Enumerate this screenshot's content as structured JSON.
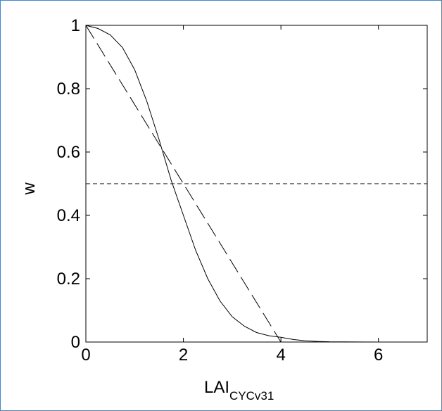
{
  "chart_data": {
    "type": "line",
    "xlabel": "LAI",
    "xlabel_subscript": "CYCv31",
    "ylabel": "w",
    "xlim": [
      0,
      7
    ],
    "ylim": [
      0,
      1
    ],
    "xticks": [
      0,
      2,
      4,
      6
    ],
    "yticks": [
      0,
      0.2,
      0.4,
      0.6,
      0.8,
      1
    ],
    "xtick_labels": [
      "0",
      "2",
      "4",
      "6"
    ],
    "ytick_labels": [
      "0",
      "0.2",
      "0.4",
      "0.6",
      "0.8",
      "1"
    ],
    "grid": false,
    "series": [
      {
        "style": "solid",
        "x": [
          0,
          0.25,
          0.5,
          0.75,
          1.0,
          1.25,
          1.5,
          1.75,
          2.0,
          2.25,
          2.5,
          2.75,
          3.0,
          3.25,
          3.5,
          3.75,
          4.0,
          4.25,
          4.5,
          4.75,
          5.0,
          6.0,
          7.0
        ],
        "y": [
          1.0,
          0.99,
          0.97,
          0.93,
          0.86,
          0.76,
          0.64,
          0.51,
          0.4,
          0.29,
          0.2,
          0.13,
          0.08,
          0.05,
          0.03,
          0.02,
          0.015,
          0.008,
          0.004,
          0.002,
          0.001,
          0.0,
          0.0
        ]
      },
      {
        "style": "long-dash",
        "x": [
          0,
          4,
          7
        ],
        "y": [
          1.0,
          0.0,
          0.0
        ]
      },
      {
        "style": "short-dash",
        "x": [
          0,
          7
        ],
        "y": [
          0.5,
          0.5
        ]
      }
    ]
  }
}
